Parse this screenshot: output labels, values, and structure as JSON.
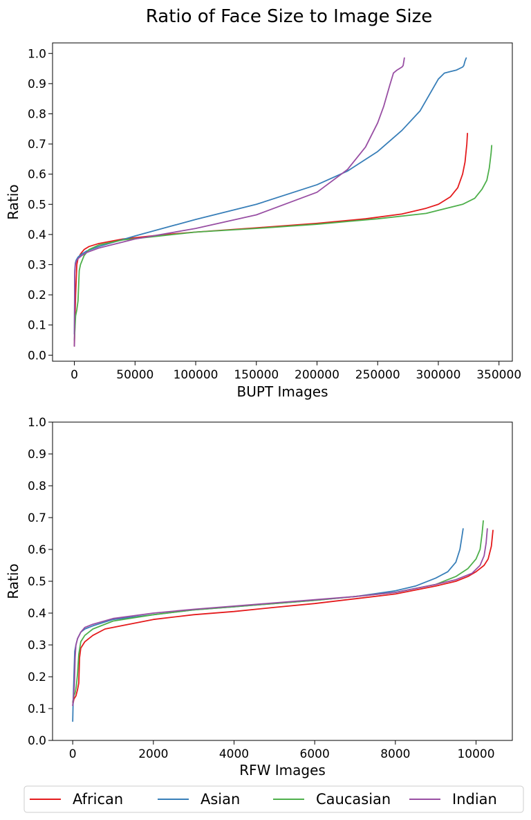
{
  "colors": {
    "African": "#e41a1c",
    "Asian": "#377eb8",
    "Caucasian": "#4daf4a",
    "Indian": "#984ea3"
  },
  "chart_data": {
    "type": "line",
    "title": "Ratio of Face Size to Image Size",
    "legend": {
      "placement": "bottom",
      "entries": [
        "African",
        "Asian",
        "Caucasian",
        "Indian"
      ]
    },
    "panels": [
      {
        "id": "bupt",
        "xlabel": "BUPT Images",
        "ylabel": "Ratio",
        "xlim": [
          -18000,
          361000
        ],
        "ylim": [
          -0.02,
          1.035
        ],
        "xticks": [
          0,
          50000,
          100000,
          150000,
          200000,
          250000,
          300000,
          350000
        ],
        "xtick_labels": [
          "0",
          "50000",
          "100000",
          "150000",
          "200000",
          "250000",
          "300000",
          "350000"
        ],
        "yticks": [
          0.0,
          0.1,
          0.2,
          0.3,
          0.4,
          0.5,
          0.6,
          0.7,
          0.8,
          0.9,
          1.0
        ],
        "ytick_labels": [
          "0.0",
          "0.1",
          "0.2",
          "0.3",
          "0.4",
          "0.5",
          "0.6",
          "0.7",
          "0.8",
          "0.9",
          "1.0"
        ],
        "series": [
          {
            "name": "African",
            "x": [
              0,
              1000,
              2000,
              3000,
              5000,
              8000,
              12000,
              20000,
              40000,
              70000,
              100000,
              150000,
              200000,
              240000,
              270000,
              290000,
              300000,
              310000,
              316000,
              320000,
              322000,
              323500,
              324000
            ],
            "y": [
              0.03,
              0.2,
              0.3,
              0.32,
              0.335,
              0.35,
              0.36,
              0.37,
              0.385,
              0.398,
              0.408,
              0.422,
              0.437,
              0.452,
              0.468,
              0.487,
              0.5,
              0.525,
              0.555,
              0.6,
              0.64,
              0.7,
              0.735
            ]
          },
          {
            "name": "Asian",
            "x": [
              0,
              300,
              800,
              1500,
              3000,
              6000,
              10000,
              20000,
              50000,
              100000,
              150000,
              200000,
              225000,
              250000,
              270000,
              285000,
              300000,
              305000,
              310000,
              315000,
              320000,
              321000,
              322000,
              323000
            ],
            "y": [
              0.07,
              0.28,
              0.305,
              0.315,
              0.325,
              0.335,
              0.345,
              0.36,
              0.395,
              0.45,
              0.5,
              0.565,
              0.61,
              0.675,
              0.745,
              0.81,
              0.915,
              0.935,
              0.94,
              0.945,
              0.955,
              0.96,
              0.975,
              0.985
            ]
          },
          {
            "name": "Caucasian",
            "x": [
              0,
              1000,
              2000,
              3000,
              4000,
              5000,
              8000,
              12000,
              20000,
              40000,
              70000,
              100000,
              150000,
              200000,
              250000,
              290000,
              320000,
              330000,
              336000,
              340000,
              342000,
              343500,
              344000
            ],
            "y": [
              0.05,
              0.13,
              0.15,
              0.18,
              0.28,
              0.3,
              0.33,
              0.35,
              0.365,
              0.382,
              0.395,
              0.408,
              0.42,
              0.434,
              0.452,
              0.47,
              0.5,
              0.52,
              0.55,
              0.58,
              0.62,
              0.67,
              0.695
            ]
          },
          {
            "name": "Indian",
            "x": [
              0,
              300,
              800,
              1500,
              3000,
              6000,
              10000,
              20000,
              50000,
              100000,
              150000,
              200000,
              225000,
              240000,
              250000,
              255000,
              260000,
              263000,
              266000,
              270000,
              271000,
              272000
            ],
            "y": [
              0.03,
              0.27,
              0.3,
              0.31,
              0.32,
              0.33,
              0.34,
              0.355,
              0.385,
              0.42,
              0.465,
              0.54,
              0.615,
              0.69,
              0.77,
              0.825,
              0.895,
              0.935,
              0.945,
              0.955,
              0.96,
              0.985
            ]
          }
        ]
      },
      {
        "id": "rfw",
        "xlabel": "RFW Images",
        "ylabel": "Ratio",
        "xlim": [
          -500,
          10900
        ],
        "ylim": [
          0.0,
          1.0
        ],
        "xticks": [
          0,
          2000,
          4000,
          6000,
          8000,
          10000
        ],
        "xtick_labels": [
          "0",
          "2000",
          "4000",
          "6000",
          "8000",
          "10000"
        ],
        "yticks": [
          0.0,
          0.1,
          0.2,
          0.3,
          0.4,
          0.5,
          0.6,
          0.7,
          0.8,
          0.9,
          1.0
        ],
        "ytick_labels": [
          "0.0",
          "0.1",
          "0.2",
          "0.3",
          "0.4",
          "0.5",
          "0.6",
          "0.7",
          "0.8",
          "0.9",
          "1.0"
        ],
        "series": [
          {
            "name": "African",
            "x": [
              0,
              30,
              80,
              120,
              150,
              170,
              200,
              300,
              500,
              800,
              1200,
              2000,
              3000,
              4000,
              5000,
              6000,
              7000,
              8000,
              9000,
              9500,
              9800,
              10000,
              10200,
              10300,
              10380,
              10420
            ],
            "y": [
              0.11,
              0.13,
              0.14,
              0.16,
              0.18,
              0.26,
              0.29,
              0.31,
              0.33,
              0.35,
              0.36,
              0.38,
              0.395,
              0.405,
              0.418,
              0.43,
              0.445,
              0.46,
              0.485,
              0.5,
              0.515,
              0.53,
              0.55,
              0.57,
              0.61,
              0.66
            ]
          },
          {
            "name": "Asian",
            "x": [
              0,
              10,
              30,
              50,
              80,
              120,
              200,
              300,
              500,
              1000,
              2000,
              3000,
              4000,
              5000,
              6000,
              7000,
              8000,
              8500,
              9000,
              9300,
              9500,
              9600,
              9650,
              9680
            ],
            "y": [
              0.06,
              0.12,
              0.2,
              0.28,
              0.3,
              0.32,
              0.34,
              0.35,
              0.36,
              0.38,
              0.395,
              0.41,
              0.42,
              0.43,
              0.44,
              0.452,
              0.47,
              0.485,
              0.51,
              0.53,
              0.56,
              0.6,
              0.64,
              0.665
            ]
          },
          {
            "name": "Caucasian",
            "x": [
              0,
              30,
              60,
              90,
              120,
              150,
              200,
              300,
              500,
              1000,
              2000,
              3000,
              4000,
              5000,
              6000,
              7000,
              8000,
              9000,
              9500,
              9800,
              10000,
              10100,
              10150,
              10180
            ],
            "y": [
              0.12,
              0.14,
              0.15,
              0.17,
              0.21,
              0.27,
              0.31,
              0.33,
              0.35,
              0.375,
              0.395,
              0.41,
              0.42,
              0.43,
              0.44,
              0.452,
              0.465,
              0.49,
              0.515,
              0.54,
              0.57,
              0.6,
              0.65,
              0.69
            ]
          },
          {
            "name": "Indian",
            "x": [
              0,
              20,
              40,
              60,
              80,
              120,
              200,
              300,
              500,
              1000,
              2000,
              3000,
              4000,
              5000,
              6000,
              7000,
              8000,
              9000,
              9500,
              9900,
              10100,
              10200,
              10250,
              10280
            ],
            "y": [
              0.11,
              0.14,
              0.17,
              0.26,
              0.3,
              0.32,
              0.34,
              0.355,
              0.365,
              0.383,
              0.4,
              0.412,
              0.422,
              0.432,
              0.442,
              0.452,
              0.465,
              0.49,
              0.505,
              0.525,
              0.55,
              0.58,
              0.62,
              0.665
            ]
          }
        ]
      }
    ]
  }
}
